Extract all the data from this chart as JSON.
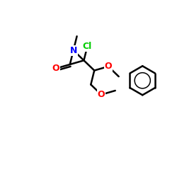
{
  "background": "#ffffff",
  "bond_color": "#000000",
  "bond_width": 1.8,
  "atom_colors": {
    "N": "#0000ff",
    "O": "#ff0000",
    "Cl": "#00cc00",
    "C": "#000000"
  },
  "font_size_atom": 9,
  "font_size_small": 7.5,
  "figsize": [
    2.5,
    2.5
  ],
  "dpi": 100,
  "xlim": [
    0,
    10
  ],
  "ylim": [
    0,
    10
  ]
}
